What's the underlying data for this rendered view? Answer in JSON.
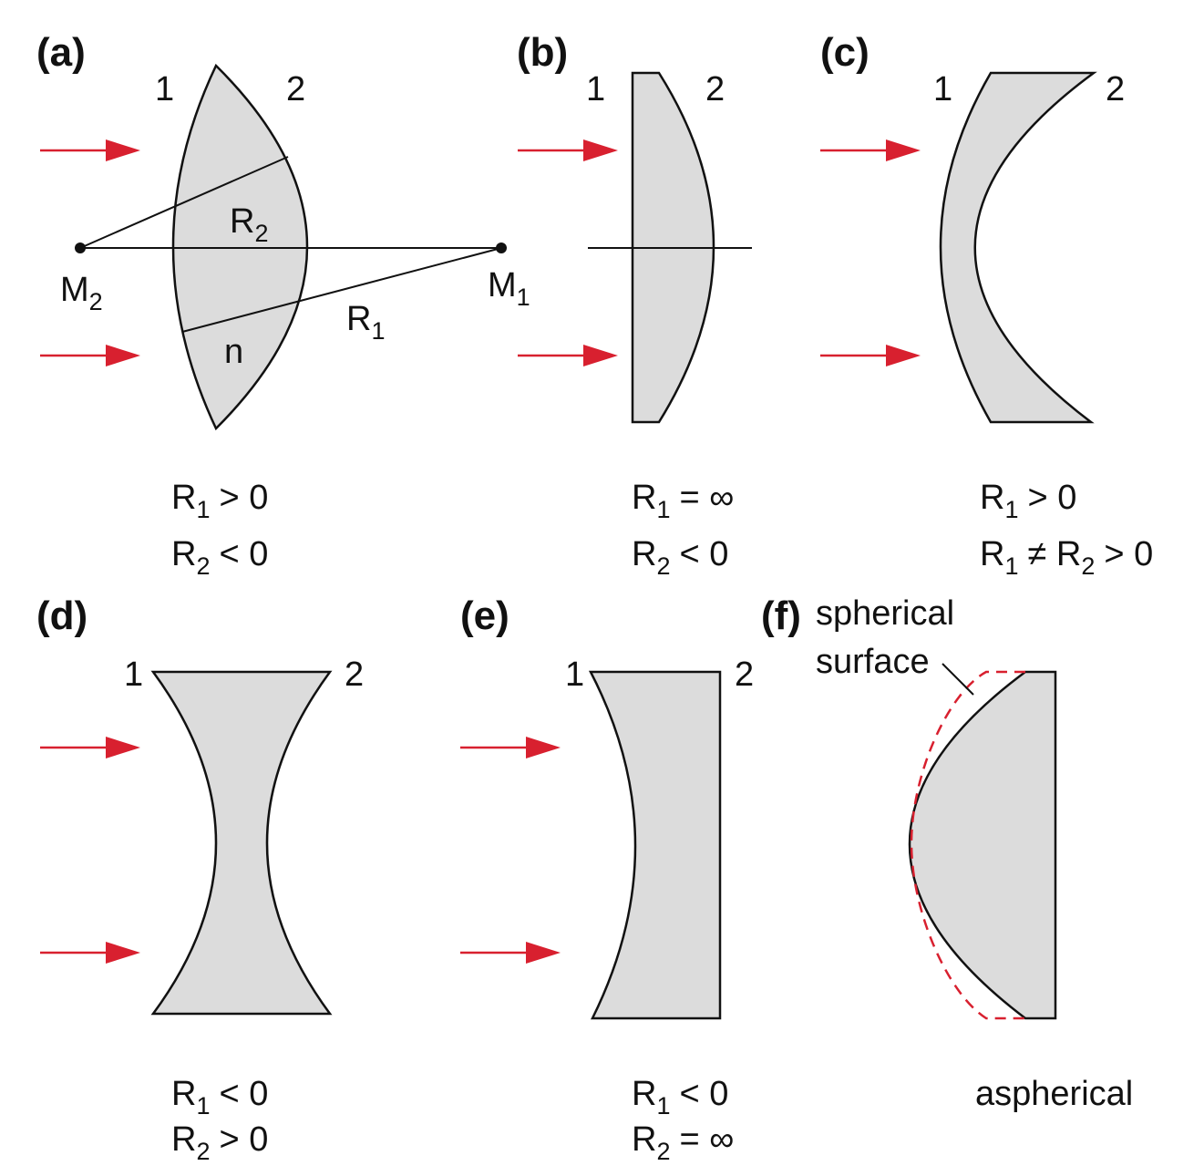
{
  "panels": [
    {
      "label": "(a)",
      "surfaces": [
        "1",
        "2"
      ],
      "annotations": {
        "m2": [
          "M",
          "2"
        ],
        "r2": [
          "R",
          "2"
        ],
        "m1": [
          "M",
          "1"
        ],
        "r1": [
          "R",
          "1"
        ],
        "n": "n"
      },
      "conditions": [
        [
          "R",
          "1",
          "> 0"
        ],
        [
          "R",
          "2",
          "< 0"
        ]
      ]
    },
    {
      "label": "(b)",
      "surfaces": [
        "1",
        "2"
      ],
      "conditions": [
        [
          "R",
          "1",
          "= ∞"
        ],
        [
          "R",
          "2",
          "< 0"
        ]
      ]
    },
    {
      "label": "(c)",
      "surfaces": [
        "1",
        "2"
      ],
      "conditions": [
        [
          "R",
          "1",
          "> 0"
        ],
        [
          "R",
          "1",
          "≠ R",
          "2",
          "> 0"
        ]
      ]
    },
    {
      "label": "(d)",
      "surfaces": [
        "1",
        "2"
      ],
      "conditions": [
        [
          "R",
          "1",
          "< 0"
        ],
        [
          "R",
          "2",
          "> 0"
        ]
      ]
    },
    {
      "label": "(e)",
      "surfaces": [
        "1",
        "2"
      ],
      "conditions": [
        [
          "R",
          "1",
          "< 0"
        ],
        [
          "R",
          "2",
          "= ∞"
        ]
      ]
    },
    {
      "label": "(f)",
      "annotation": [
        "spherical",
        "surface"
      ],
      "caption": "aspherical"
    }
  ]
}
